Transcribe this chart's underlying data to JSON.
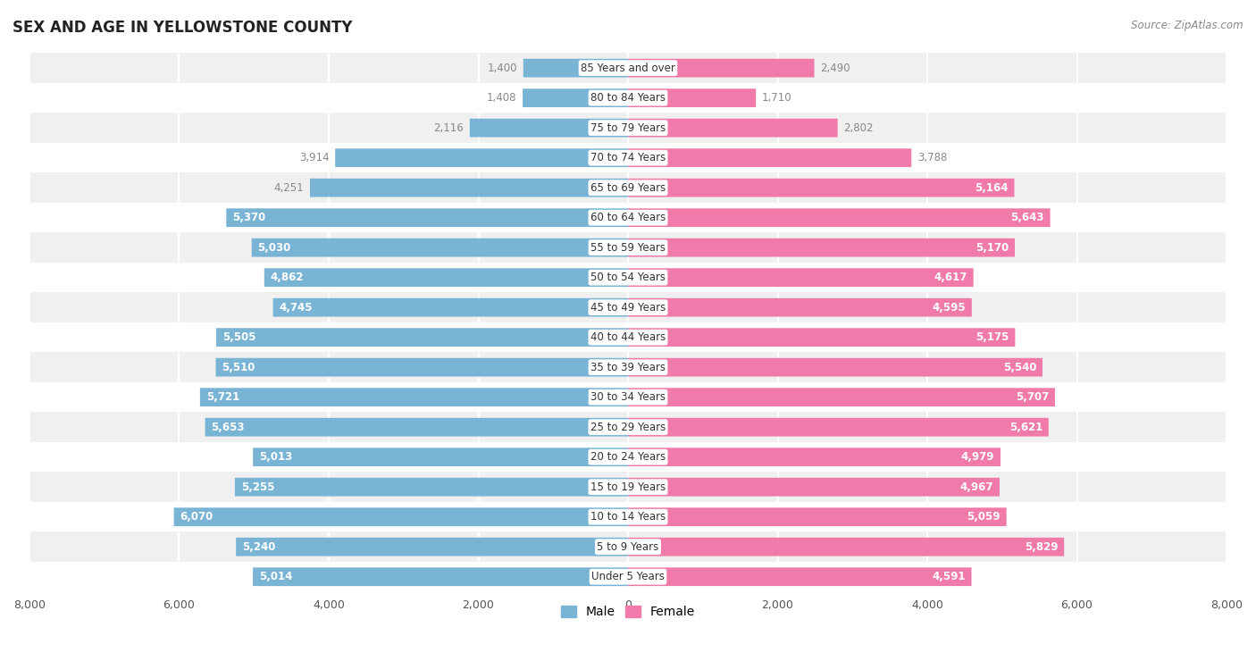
{
  "title": "SEX AND AGE IN YELLOWSTONE COUNTY",
  "source": "Source: ZipAtlas.com",
  "categories": [
    "85 Years and over",
    "80 to 84 Years",
    "75 to 79 Years",
    "70 to 74 Years",
    "65 to 69 Years",
    "60 to 64 Years",
    "55 to 59 Years",
    "50 to 54 Years",
    "45 to 49 Years",
    "40 to 44 Years",
    "35 to 39 Years",
    "30 to 34 Years",
    "25 to 29 Years",
    "20 to 24 Years",
    "15 to 19 Years",
    "10 to 14 Years",
    "5 to 9 Years",
    "Under 5 Years"
  ],
  "male": [
    1400,
    1408,
    2116,
    3914,
    4251,
    5370,
    5030,
    4862,
    4745,
    5505,
    5510,
    5721,
    5653,
    5013,
    5255,
    6070,
    5240,
    5014
  ],
  "female": [
    2490,
    1710,
    2802,
    3788,
    5164,
    5643,
    5170,
    4617,
    4595,
    5175,
    5540,
    5707,
    5621,
    4979,
    4967,
    5059,
    5829,
    4591
  ],
  "male_color": "#7ab4d4",
  "female_color": "#f07aaa",
  "male_label_color_outside": "#888888",
  "female_label_color_outside": "#888888",
  "male_label_color_inside": "#ffffff",
  "female_label_color_inside": "#ffffff",
  "bar_height": 0.62,
  "xlim": 8000,
  "background_color": "#ffffff",
  "row_color_odd": "#f0f0f0",
  "row_color_even": "#ffffff",
  "title_fontsize": 12,
  "label_fontsize": 8.5,
  "tick_fontsize": 9,
  "category_fontsize": 8.5,
  "inside_label_threshold": 4500
}
